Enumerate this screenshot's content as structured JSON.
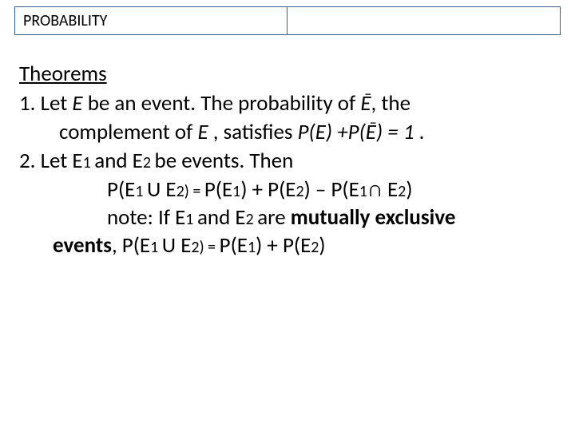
{
  "header": {
    "title": "PROBABILITY"
  },
  "section_title": "Theorems",
  "theorem1": {
    "num": "1.",
    "line1_a": "Let ",
    "line1_E": "E",
    "line1_b": " be an event. The probability of ",
    "line1_Ebar": "Ē",
    "line1_c": ", the",
    "line2_a": "complement of ",
    "line2_E": "E",
    "line2_b": " , satisfies ",
    "line2_formula": "P(E) +P(Ē) = 1",
    "line2_c": " ."
  },
  "theorem2": {
    "num": "2.",
    "line1_a": " Let E",
    "line1_s1": "1 ",
    "line1_b": "and E",
    "line1_s2": "2 ",
    "line1_c": " be events. Then",
    "formula_a": "P(E",
    "formula_s1": "1 ",
    "formula_b": "U E",
    "formula_s2": "2",
    "formula_eq": ") = ",
    "formula_c": "P(E",
    "formula_s3": "1",
    "formula_d": ") + P(E",
    "formula_s4": "2",
    "formula_e": ") – P(E",
    "formula_s5": "1",
    "formula_f": "∩ E",
    "formula_s6": "2",
    "formula_g": ")",
    "note_a": "note: If E",
    "note_s1": "1 ",
    "note_b": "and E",
    "note_s2": "2 ",
    "note_c": "are ",
    "note_bold": "mutually exclusive",
    "note2_a": "events",
    "note2_b": ", P(E",
    "note2_s1": "1 ",
    "note2_c": "U E",
    "note2_s2": "2",
    "note2_eq": ") = ",
    "note2_d": "P(E",
    "note2_s3": "1",
    "note2_e": ") + P(E",
    "note2_s4": "2",
    "note2_f": ")"
  },
  "colors": {
    "border": "#3a5f8a",
    "text": "#000000",
    "background": "#ffffff"
  },
  "fonts": {
    "body_size": 27,
    "header_size": 20,
    "sub_size": 20
  }
}
